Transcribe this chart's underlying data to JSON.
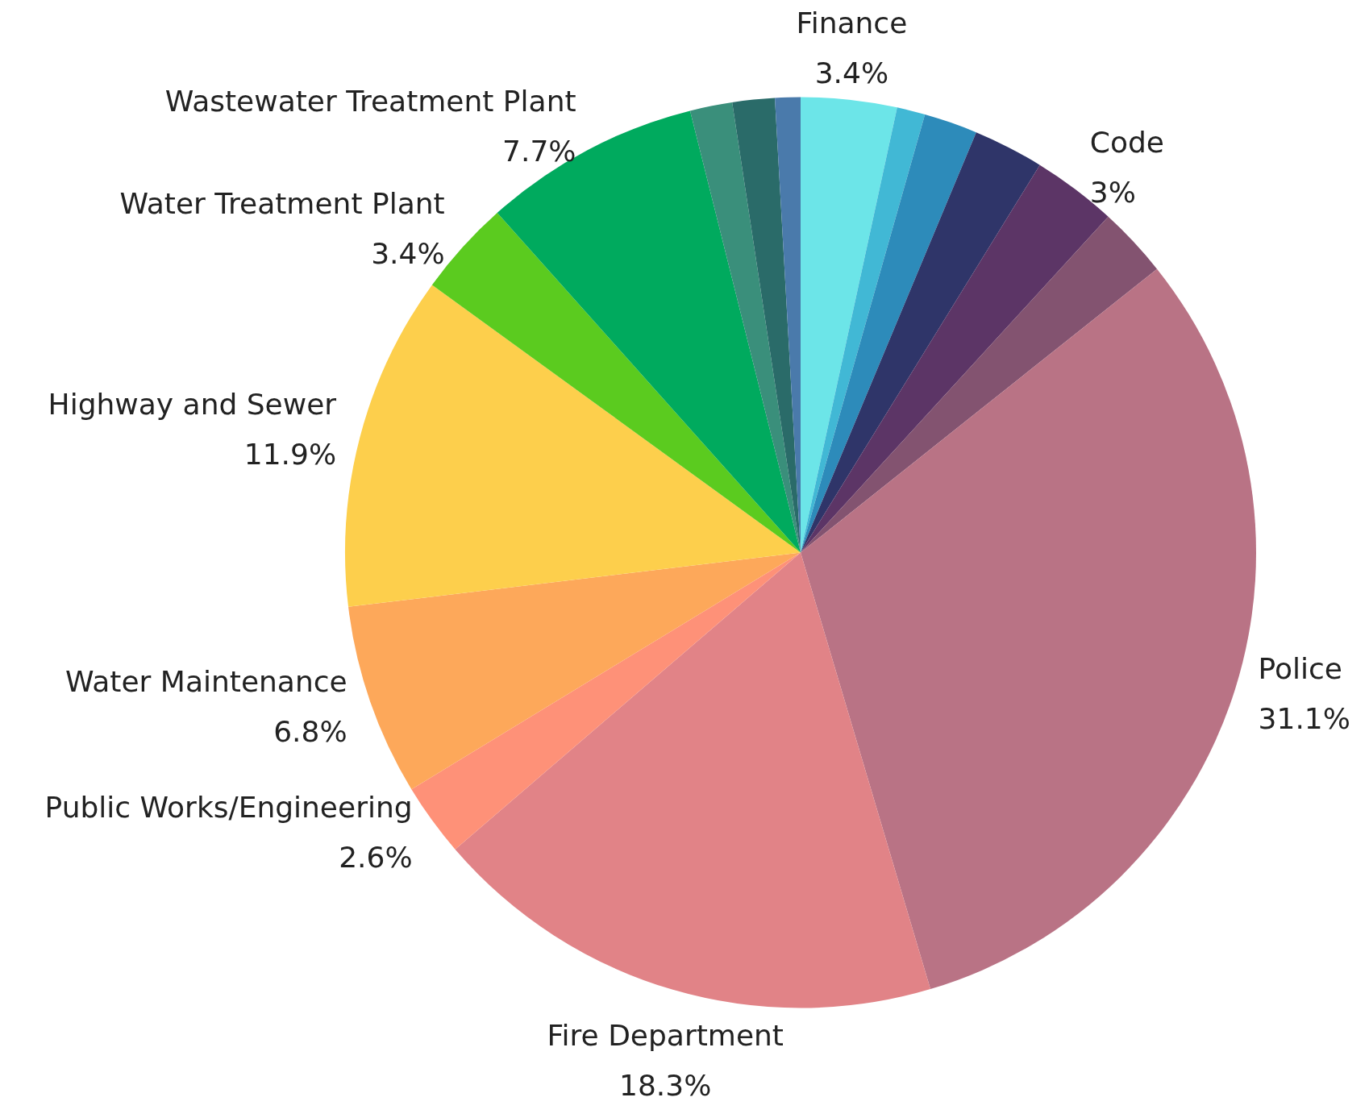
{
  "chart_data": {
    "type": "pie",
    "categories": [
      "Finance",
      null,
      null,
      null,
      "Code",
      null,
      "Police",
      "Fire Department",
      "Public Works/Engineering",
      "Water Maintenance",
      "Highway and Sewer",
      "Water Treatment Plant",
      "Wastewater Treatment Plant",
      null,
      null,
      null
    ],
    "values": [
      3.4,
      1.0,
      1.9,
      2.5,
      3,
      2.5,
      31.1,
      18.3,
      2.6,
      6.8,
      11.9,
      3.4,
      7.7,
      1.5,
      1.5,
      0.9
    ],
    "value_labels": [
      "3.4%",
      null,
      null,
      null,
      "3%",
      null,
      "31.1%",
      "18.3%",
      "2.6%",
      "6.8%",
      "11.9%",
      "3.4%",
      "7.7%",
      null,
      null,
      null
    ],
    "colors": [
      "#6ce5e8",
      "#41b8d5",
      "#2d8bba",
      "#2f3569",
      "#5c3566",
      "#835370",
      "#b97385",
      "#e18387",
      "#fe9178",
      "#fda85a",
      "#fdcf4c",
      "#5bcb1f",
      "#00aa5e",
      "#3a8f7b",
      "#2a6b69",
      "#4a7aab"
    ],
    "legend": false
  }
}
